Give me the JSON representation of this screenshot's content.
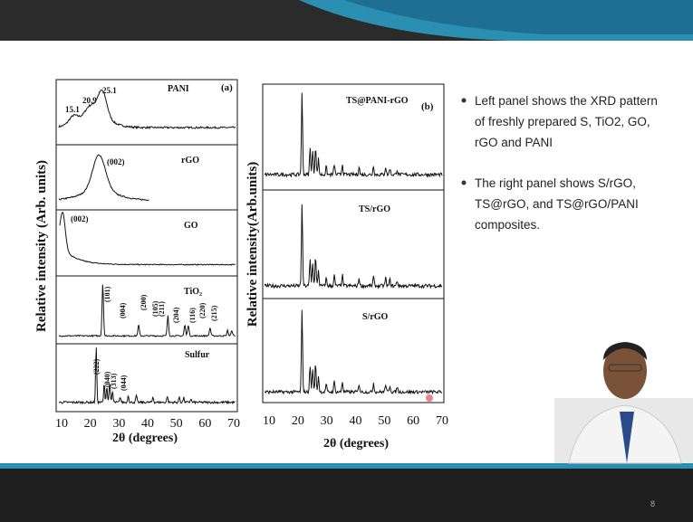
{
  "figure_left": {
    "y_label": "Relative intensity (Arb. units)",
    "x_label": "2θ (degrees)",
    "panel_tag": "(a)",
    "x_ticks": [
      "10",
      "20",
      "30",
      "40",
      "50",
      "60",
      "70"
    ],
    "panels": [
      {
        "name": "PANI",
        "peaks": [
          "15.1",
          "20.9",
          "25.1"
        ]
      },
      {
        "name": "rGO",
        "peaks": [
          "(002)"
        ]
      },
      {
        "name": "GO",
        "peaks": [
          "(002)"
        ]
      },
      {
        "name": "TiO₂",
        "peaks": [
          "(101)",
          "(004)",
          "(200)",
          "(105)",
          "(211)",
          "(204)",
          "(116)",
          "(220)",
          "(215)"
        ]
      },
      {
        "name": "Sulfur",
        "peaks": [
          "(222)",
          "(040)",
          "(313)",
          "(044)"
        ]
      }
    ]
  },
  "figure_right": {
    "y_label": "Relative intensity(Arb.units)",
    "x_label": "2θ (degrees)",
    "panel_tag": "(b)",
    "x_ticks": [
      "10",
      "20",
      "30",
      "40",
      "50",
      "60",
      "70"
    ],
    "panels": [
      {
        "name": "TS@PANI-rGO"
      },
      {
        "name": "TS/rGO"
      },
      {
        "name": "S/rGO"
      }
    ]
  },
  "bullets": [
    "Left panel shows the XRD pattern of freshly prepared S, TiO2, GO, rGO and PANI",
    "The right panel shows S/rGO, TS@rGO, and TS@rGO/PANI composites."
  ],
  "page_number": "8"
}
